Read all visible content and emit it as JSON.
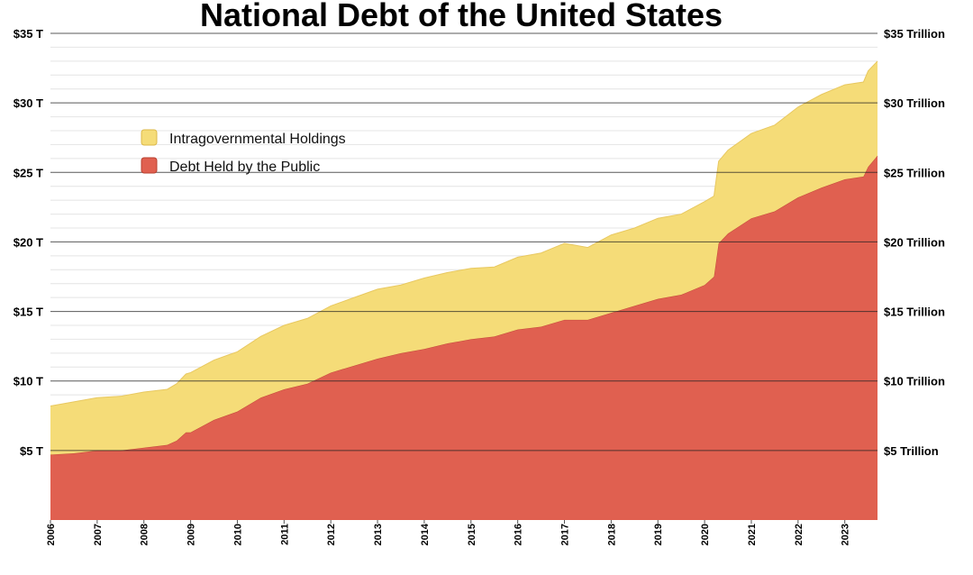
{
  "chart_data": {
    "type": "area",
    "stacked": true,
    "title": "National Debt of the United States",
    "xlabel": "",
    "ylabel": "",
    "x_tick_labels": [
      "2006",
      "2007",
      "2008",
      "2009",
      "2010",
      "2011",
      "2012",
      "2013",
      "2014",
      "2015",
      "2016",
      "2017",
      "2018",
      "2019",
      "2020",
      "2021",
      "2022",
      "2023"
    ],
    "xlim": [
      2006,
      2023.7
    ],
    "ylim": [
      0,
      35
    ],
    "y_ticks": [
      5,
      10,
      15,
      20,
      25,
      30,
      35
    ],
    "y_tick_labels_left": [
      "$5 T",
      "$10 T",
      "$15 T",
      "$20 T",
      "$25 T",
      "$30 T",
      "$35 T"
    ],
    "y_tick_labels_right": [
      "$5 Trillion",
      "$10 Trillion",
      "$15 Trillion",
      "$20 Trillion",
      "$25 Trillion",
      "$30 Trillion",
      "$35 Trillion"
    ],
    "grid": true,
    "legend_position": "top-left",
    "x": [
      2006.0,
      2006.5,
      2007.0,
      2007.5,
      2008.0,
      2008.5,
      2008.7,
      2008.9,
      2009.0,
      2009.5,
      2010.0,
      2010.5,
      2011.0,
      2011.5,
      2012.0,
      2012.5,
      2013.0,
      2013.5,
      2014.0,
      2014.5,
      2015.0,
      2015.5,
      2016.0,
      2016.5,
      2017.0,
      2017.5,
      2018.0,
      2018.5,
      2019.0,
      2019.5,
      2020.0,
      2020.2,
      2020.3,
      2020.5,
      2021.0,
      2021.5,
      2022.0,
      2022.5,
      2023.0,
      2023.4,
      2023.5,
      2023.7
    ],
    "series": [
      {
        "name": "Debt Held by the Public",
        "color": "#e06050",
        "values": [
          4.7,
          4.8,
          5.0,
          5.0,
          5.2,
          5.4,
          5.7,
          6.3,
          6.3,
          7.2,
          7.8,
          8.8,
          9.4,
          9.8,
          10.6,
          11.1,
          11.6,
          12.0,
          12.3,
          12.7,
          13.0,
          13.2,
          13.7,
          13.9,
          14.4,
          14.4,
          14.9,
          15.4,
          15.9,
          16.2,
          16.9,
          17.5,
          19.9,
          20.6,
          21.7,
          22.2,
          23.2,
          23.9,
          24.5,
          24.7,
          25.4,
          26.2
        ]
      },
      {
        "name": "Intragovernmental Holdings",
        "color": "#f5dc78",
        "values": [
          3.5,
          3.7,
          3.8,
          3.9,
          4.0,
          4.0,
          4.1,
          4.2,
          4.3,
          4.3,
          4.3,
          4.4,
          4.6,
          4.7,
          4.8,
          4.9,
          5.0,
          4.9,
          5.1,
          5.1,
          5.1,
          5.0,
          5.2,
          5.3,
          5.5,
          5.2,
          5.6,
          5.6,
          5.8,
          5.8,
          6.0,
          5.8,
          5.9,
          6.0,
          6.1,
          6.2,
          6.5,
          6.7,
          6.8,
          6.8,
          6.9,
          6.8
        ]
      }
    ],
    "legend": [
      {
        "label": "Intragovernmental Holdings",
        "color": "#f5dc78",
        "border": "#dcb94a"
      },
      {
        "label": "Debt Held by the Public",
        "color": "#e06050",
        "border": "#b8402f"
      }
    ]
  }
}
